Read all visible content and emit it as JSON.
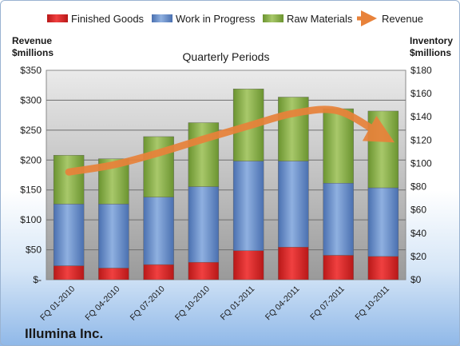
{
  "chart_data": {
    "type": "bar",
    "title": "Quarterly Periods",
    "company": "Illumina Inc.",
    "left_axis_label": [
      "Revenue",
      "$millions"
    ],
    "right_axis_label": [
      "Inventory",
      "$millions"
    ],
    "categories": [
      "FQ 01-2010",
      "FQ 04-2010",
      "FQ 07-2010",
      "FQ 10-2010",
      "FQ 01-2011",
      "FQ 04-2011",
      "FQ 07-2011",
      "FQ 10-2011"
    ],
    "series": [
      {
        "name": "Finished Goods",
        "axis": "right",
        "color": "#d42020",
        "values": [
          12,
          10,
          13,
          15,
          25,
          28,
          21,
          20
        ]
      },
      {
        "name": "Work in Progress",
        "axis": "right",
        "color": "#5a82c4",
        "values": [
          53,
          55,
          58,
          65,
          77,
          74,
          62,
          59
        ]
      },
      {
        "name": "Raw Materials",
        "axis": "right",
        "color": "#7fa63a",
        "values": [
          42,
          39,
          52,
          55,
          62,
          55,
          64,
          66
        ]
      },
      {
        "name": "Revenue",
        "axis": "left",
        "type": "line",
        "color": "#e8823a",
        "values": [
          180,
          192,
          212,
          235,
          257,
          278,
          282,
          240
        ]
      }
    ],
    "left_axis": {
      "min": 0,
      "max": 350,
      "step": 50,
      "tick_labels": [
        "$-",
        "$50",
        "$100",
        "$150",
        "$200",
        "$250",
        "$300",
        "$350"
      ]
    },
    "right_axis": {
      "min": 0,
      "max": 180,
      "step": 20,
      "tick_labels": [
        "$0",
        "$20",
        "$40",
        "$60",
        "$80",
        "$100",
        "$120",
        "$140",
        "$160",
        "$180"
      ]
    },
    "legend_position": "top",
    "grid": true,
    "stacked": true
  }
}
